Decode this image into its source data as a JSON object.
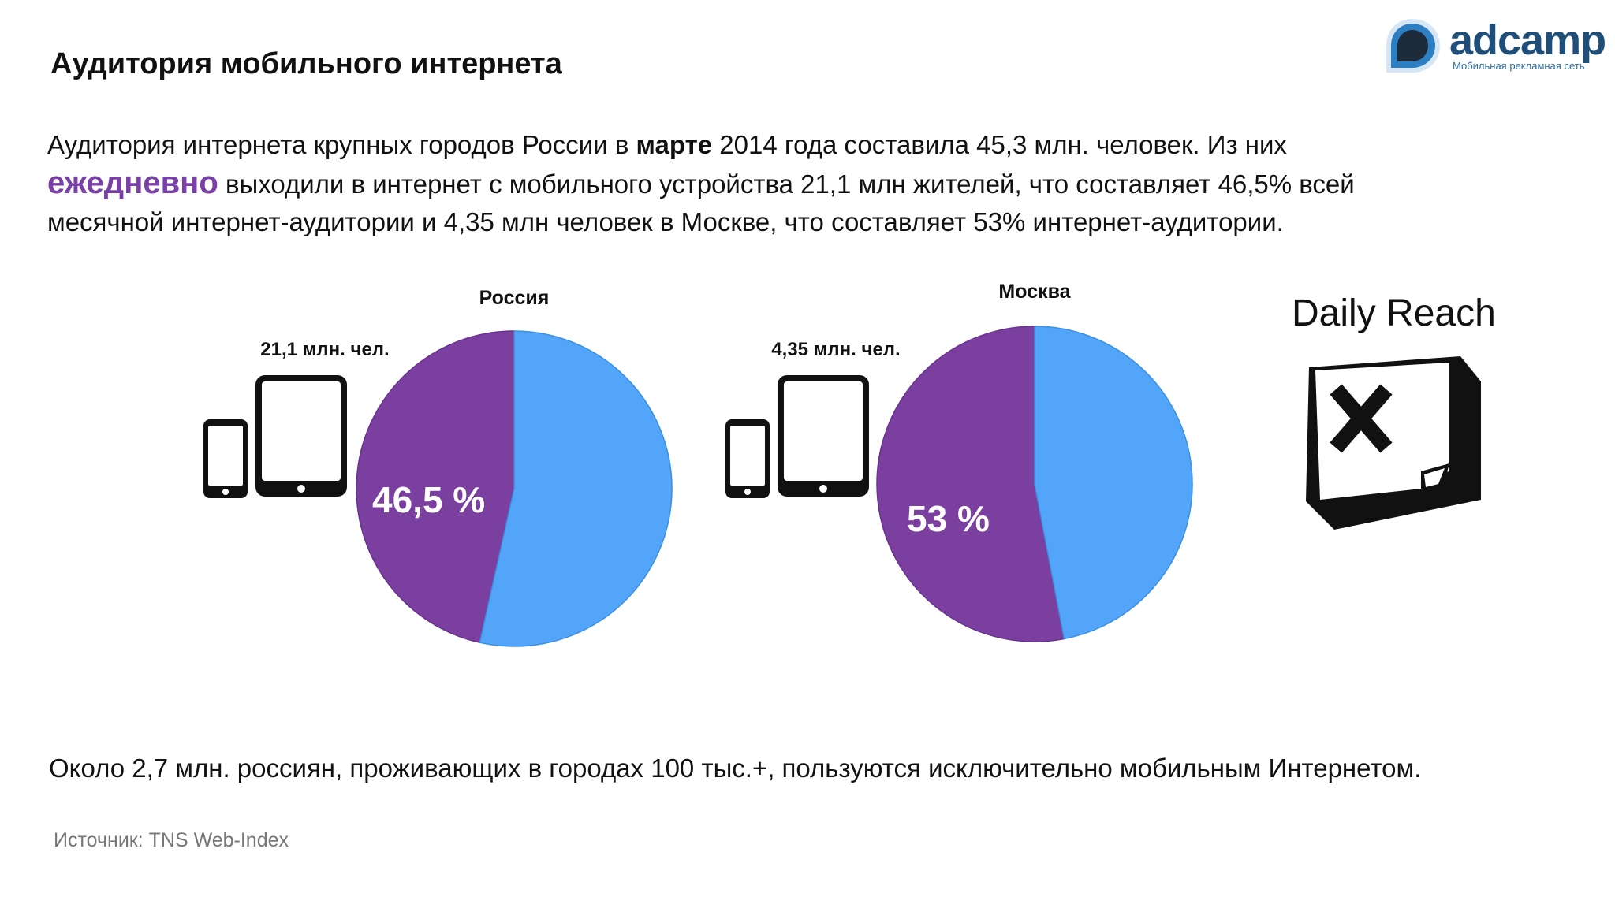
{
  "page": {
    "title": "Аудитория мобильного интернета"
  },
  "logo": {
    "word": "adcamp",
    "tagline": "Мобильная рекламная сеть"
  },
  "intro": {
    "p1_a": "Аудитория интернета крупных городов России в ",
    "p1_bold": "марте",
    "p1_b": " 2014 года составила 45,3 млн. человек. Из них",
    "p2_accent": "ежедневно",
    "p2_a": " выходили в интернет с мобильного устройства 21,1 млн жителей, что составляет 46,5% всей",
    "p3": "месячной интернет-аудитории и 4,35 млн человек в Москве, что составляет 53% интернет-аудитории."
  },
  "colors": {
    "purple": "#7b3fa0",
    "blue": "#52a5f8",
    "accent_text": "#7b3fa8"
  },
  "chart_data": [
    {
      "type": "pie",
      "title": "Россия",
      "audience_label": "21,1 млн. чел.",
      "slices": [
        {
          "value": 46.5,
          "label": "46,5 %",
          "color": "#7b3fa0"
        },
        {
          "value": 53.5,
          "label": "",
          "color": "#52a5f8"
        }
      ]
    },
    {
      "type": "pie",
      "title": "Москва",
      "audience_label": "4,35 млн. чел.",
      "slices": [
        {
          "value": 53,
          "label": "53 %",
          "color": "#7b3fa0"
        },
        {
          "value": 47,
          "label": "",
          "color": "#52a5f8"
        }
      ]
    }
  ],
  "daily_reach": {
    "text": "Daily Reach",
    "icon": "x-box-icon"
  },
  "footer": {
    "main": "Около 2,7 млн. россиян, проживающих в городах 100 тыс.+, пользуются исключительно мобильным Интернетом.",
    "source": "Источник: TNS Web-Index"
  },
  "icons": {
    "phone": "phone-icon",
    "tablet": "tablet-icon"
  }
}
